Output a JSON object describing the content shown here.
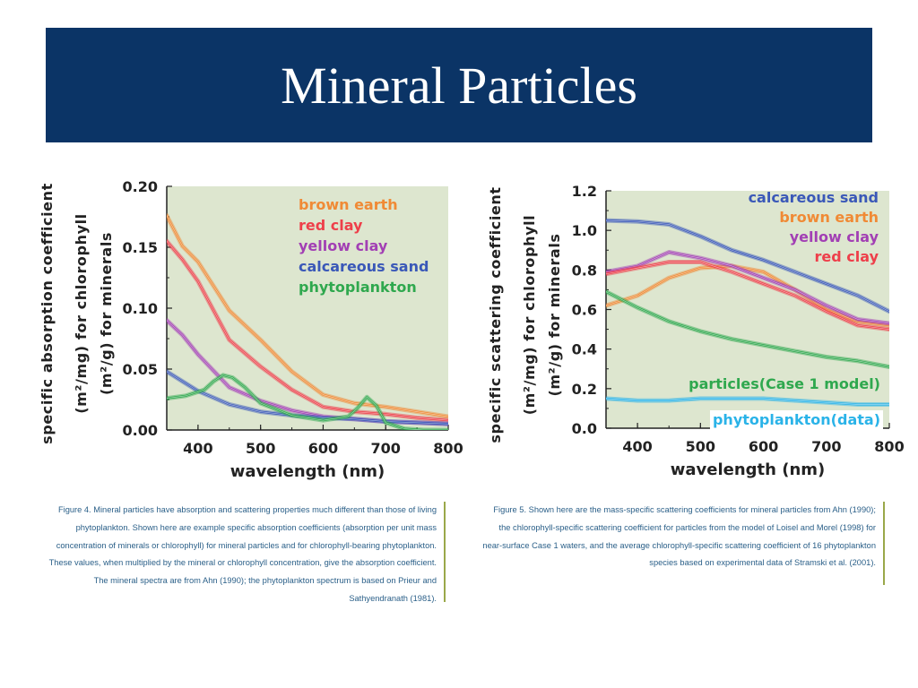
{
  "slide": {
    "title": "Mineral Particles"
  },
  "captions": {
    "left": "Figure 4. Mineral particles have absorption and scattering properties much different than those of living phytoplankton. Shown here are example specific absorption coefficients (absorption per unit mass concentration of minerals or chlorophyll) for mineral particles and for chlorophyll-bearing phytoplankton. These values, when multiplied by the mineral or chlorophyll concentration, give the absorption coefficient. The mineral spectra are from Ahn (1990); the phytoplankton spectrum is based on Prieur and Sathyendranath (1981).",
    "right": "Figure 5. Shown here are the mass-specific scattering coefficients for mineral particles from Ahn (1990); the chlorophyll-specific scattering coefficient for particles from the model of Loisel and Morel (1998) for near-surface Case 1 waters, and the average chlorophyll-specific scattering coefficient of 16 phytoplankton species based on experimental data of Stramski et al. (2001)."
  },
  "colors": {
    "plot_bg": "#dde6cf",
    "axis": "#222222",
    "brown_earth": "#f08a35",
    "red_clay": "#ee3f4a",
    "yellow_clay": "#a23fb4",
    "calcareous_sand": "#3a58b8",
    "phytoplankton": "#2fa84e",
    "particles": "#2fa84e",
    "phytoplankton_data": "#2ab3e8"
  },
  "chart_data": [
    {
      "type": "line",
      "ylabel_line1": "specific absorption coefficient",
      "ylabel_line2": "(m²/mg) for chlorophyll",
      "ylabel_line3": "(m²/g) for minerals",
      "xlabel": "wavelength (nm)",
      "xlim": [
        350,
        800
      ],
      "ylim": [
        0,
        0.2
      ],
      "xticks": [
        "400",
        "500",
        "600",
        "700",
        "800"
      ],
      "xtick_values": [
        400,
        500,
        600,
        700,
        800
      ],
      "yticks": [
        "0.00",
        "0.05",
        "0.10",
        "0.15",
        "0.20"
      ],
      "ytick_values": [
        0,
        0.05,
        0.1,
        0.15,
        0.2
      ],
      "legend_position": "top-right",
      "series": [
        {
          "name": "brown earth",
          "color_key": "brown_earth",
          "x": [
            350,
            375,
            400,
            450,
            500,
            550,
            600,
            650,
            700,
            750,
            800
          ],
          "y": [
            0.176,
            0.151,
            0.138,
            0.098,
            0.074,
            0.048,
            0.029,
            0.022,
            0.019,
            0.015,
            0.011
          ]
        },
        {
          "name": "red clay",
          "color_key": "red_clay",
          "x": [
            350,
            375,
            400,
            450,
            500,
            550,
            600,
            650,
            700,
            750,
            800
          ],
          "y": [
            0.155,
            0.14,
            0.122,
            0.074,
            0.052,
            0.033,
            0.019,
            0.015,
            0.013,
            0.01,
            0.008
          ]
        },
        {
          "name": "yellow clay",
          "color_key": "yellow_clay",
          "x": [
            350,
            375,
            400,
            450,
            500,
            550,
            600,
            650,
            700,
            750,
            800
          ],
          "y": [
            0.09,
            0.078,
            0.062,
            0.035,
            0.024,
            0.016,
            0.011,
            0.009,
            0.007,
            0.006,
            0.005
          ]
        },
        {
          "name": "calcareous sand",
          "color_key": "calcareous_sand",
          "x": [
            350,
            375,
            400,
            450,
            500,
            550,
            600,
            650,
            700,
            750,
            800
          ],
          "y": [
            0.048,
            0.04,
            0.032,
            0.021,
            0.015,
            0.012,
            0.01,
            0.009,
            0.007,
            0.006,
            0.005
          ]
        },
        {
          "name": "phytoplankton",
          "color_key": "phytoplankton",
          "x": [
            350,
            380,
            410,
            425,
            440,
            455,
            475,
            500,
            550,
            600,
            640,
            655,
            670,
            685,
            700,
            730,
            760,
            800
          ],
          "y": [
            0.026,
            0.028,
            0.033,
            0.04,
            0.045,
            0.043,
            0.035,
            0.022,
            0.012,
            0.008,
            0.011,
            0.018,
            0.027,
            0.02,
            0.006,
            0.001,
            0.0,
            0.0
          ]
        }
      ]
    },
    {
      "type": "line",
      "ylabel_line1": "specific scattering coefficient",
      "ylabel_line2": "(m²/mg) for chlorophyll",
      "ylabel_line3": "(m²/g) for minerals",
      "xlabel": "wavelength (nm)",
      "xlim": [
        350,
        800
      ],
      "ylim": [
        0,
        1.2
      ],
      "xticks": [
        "400",
        "500",
        "600",
        "700",
        "800"
      ],
      "xtick_values": [
        400,
        500,
        600,
        700,
        800
      ],
      "yticks": [
        "0.0",
        "0.2",
        "0.4",
        "0.6",
        "0.8",
        "1.0",
        "1.2"
      ],
      "ytick_values": [
        0,
        0.2,
        0.4,
        0.6,
        0.8,
        1.0,
        1.2
      ],
      "legend_position": "top-right",
      "series": [
        {
          "name": "calcareous sand",
          "color_key": "calcareous_sand",
          "x": [
            350,
            400,
            450,
            500,
            550,
            600,
            650,
            700,
            750,
            800
          ],
          "y": [
            1.05,
            1.045,
            1.03,
            0.97,
            0.9,
            0.85,
            0.79,
            0.73,
            0.67,
            0.59
          ]
        },
        {
          "name": "brown earth",
          "color_key": "brown_earth",
          "x": [
            350,
            400,
            450,
            500,
            550,
            600,
            650,
            700,
            750,
            800
          ],
          "y": [
            0.62,
            0.67,
            0.76,
            0.81,
            0.82,
            0.79,
            0.7,
            0.6,
            0.54,
            0.52
          ]
        },
        {
          "name": "yellow clay",
          "color_key": "yellow_clay",
          "x": [
            350,
            400,
            450,
            500,
            550,
            600,
            650,
            700,
            750,
            800
          ],
          "y": [
            0.79,
            0.82,
            0.89,
            0.86,
            0.82,
            0.76,
            0.7,
            0.62,
            0.55,
            0.53
          ]
        },
        {
          "name": "red clay",
          "color_key": "red_clay",
          "x": [
            350,
            400,
            450,
            500,
            550,
            600,
            650,
            700,
            750,
            800
          ],
          "y": [
            0.78,
            0.81,
            0.84,
            0.84,
            0.79,
            0.73,
            0.67,
            0.59,
            0.52,
            0.5
          ]
        },
        {
          "name": "particles(Case 1 model)",
          "color_key": "particles",
          "x": [
            350,
            400,
            450,
            500,
            550,
            600,
            650,
            700,
            750,
            800
          ],
          "y": [
            0.69,
            0.61,
            0.54,
            0.49,
            0.45,
            0.42,
            0.39,
            0.36,
            0.34,
            0.31
          ]
        },
        {
          "name": "phytoplankton(data)",
          "color_key": "phytoplankton_data",
          "x": [
            350,
            400,
            450,
            500,
            550,
            600,
            650,
            700,
            750,
            800
          ],
          "y": [
            0.15,
            0.14,
            0.14,
            0.15,
            0.15,
            0.15,
            0.14,
            0.13,
            0.12,
            0.12
          ]
        }
      ]
    }
  ]
}
